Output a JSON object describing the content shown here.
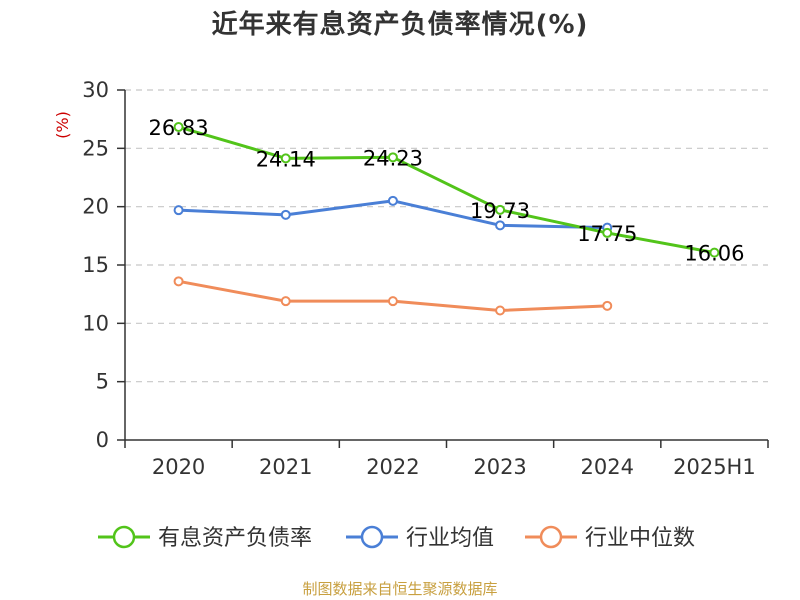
{
  "chart_data": {
    "type": "line",
    "title": "近年来有息资产负债率情况(%)",
    "unit_label": "(%)",
    "categories": [
      "2020",
      "2021",
      "2022",
      "2023",
      "2024",
      "2025H1"
    ],
    "ylim": [
      0,
      30
    ],
    "yticks": [
      0,
      5,
      10,
      15,
      20,
      25,
      30
    ],
    "grid": true,
    "legend_position": "bottom",
    "series": [
      {
        "name": "有息资产负债率",
        "color": "#52c41a",
        "values": [
          26.83,
          24.14,
          24.23,
          19.73,
          17.75,
          16.06
        ],
        "labels": [
          "26.83",
          "24.14",
          "24.23",
          "19.73",
          "17.75",
          "16.06"
        ]
      },
      {
        "name": "行业均值",
        "color": "#4a7fd6",
        "values": [
          19.7,
          19.3,
          20.5,
          18.4,
          18.2,
          null
        ]
      },
      {
        "name": "行业中位数",
        "color": "#f08c5a",
        "values": [
          13.6,
          11.9,
          11.9,
          11.1,
          11.5,
          null
        ]
      }
    ]
  },
  "source": "制图数据来自恒生聚源数据库"
}
